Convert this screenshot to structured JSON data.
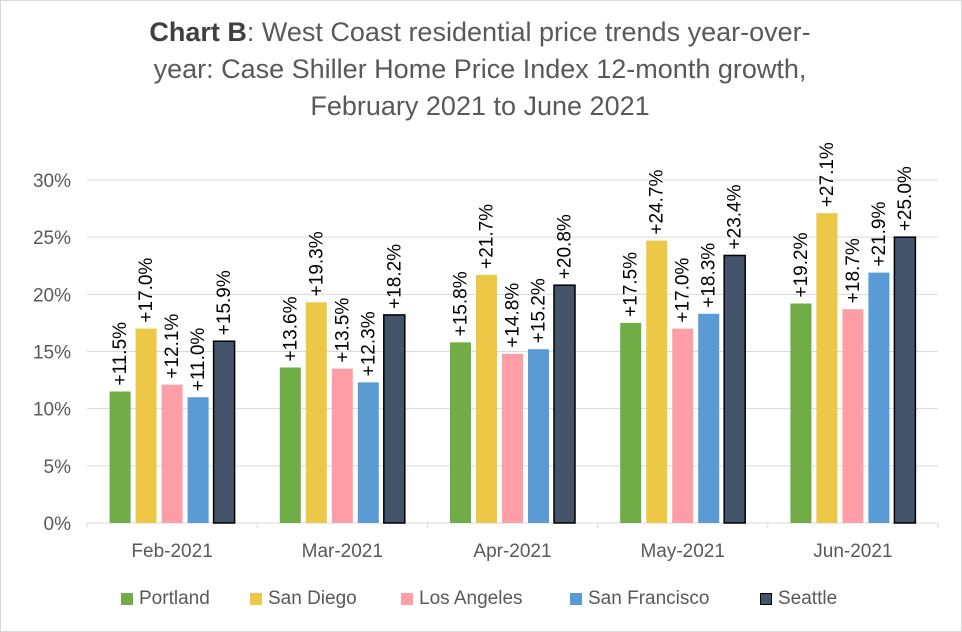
{
  "title": {
    "bold": "Chart B",
    "rest_line1": ": West Coast residential price trends year-over-",
    "line2": "year: Case Shiller Home Price Index 12-month growth,",
    "line3": "February 2021 to June 2021"
  },
  "chart_data": {
    "type": "bar",
    "categories": [
      "Feb-2021",
      "Mar-2021",
      "Apr-2021",
      "May-2021",
      "Jun-2021"
    ],
    "series": [
      {
        "name": "Portland",
        "color": "#70ad47",
        "values": [
          11.5,
          13.6,
          15.8,
          17.5,
          19.2
        ],
        "labels": [
          "+11.5%",
          "+13.6%",
          "+15.8%",
          "+17.5%",
          "+19.2%"
        ]
      },
      {
        "name": "San Diego",
        "color": "#ecc846",
        "values": [
          17.0,
          19.3,
          21.7,
          24.7,
          27.1
        ],
        "labels": [
          "+17.0%",
          "+19.3%",
          "+21.7%",
          "+24.7%",
          "+27.1%"
        ]
      },
      {
        "name": "Los Angeles",
        "color": "#ff9ea6",
        "values": [
          12.1,
          13.5,
          14.8,
          17.0,
          18.7
        ],
        "labels": [
          "+12.1%",
          "+13.5%",
          "+14.8%",
          "+17.0%",
          "+18.7%"
        ]
      },
      {
        "name": "San Francisco",
        "color": "#5b9bd5",
        "values": [
          11.0,
          12.3,
          15.2,
          18.3,
          21.9
        ],
        "labels": [
          "+11.0%",
          "+12.3%",
          "+15.2%",
          "+18.3%",
          "+21.9%"
        ]
      },
      {
        "name": "Seattle",
        "color": "#44546a",
        "values": [
          15.9,
          18.2,
          20.8,
          23.4,
          25.0
        ],
        "labels": [
          "+15.9%",
          "+18.2%",
          "+20.8%",
          "+23.4%",
          "+25.0%"
        ]
      }
    ],
    "ylim": [
      0,
      30
    ],
    "yticks": [
      0,
      5,
      10,
      15,
      20,
      25,
      30
    ],
    "ytick_labels": [
      "0%",
      "5%",
      "10%",
      "15%",
      "20%",
      "25%",
      "30%"
    ],
    "grid": true,
    "legend": "bottom"
  }
}
